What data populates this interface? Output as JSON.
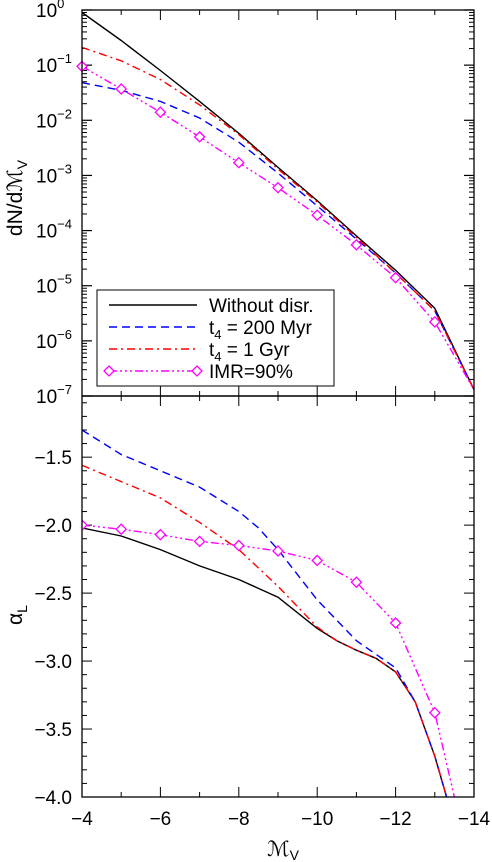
{
  "chart_data": [
    {
      "type": "line",
      "panel": "top",
      "xlabel": "",
      "ylabel_main": "dN/d",
      "ylabel_script": "ℳ",
      "ylabel_sub": "V",
      "yscale": "log",
      "xlim": [
        -4,
        -14
      ],
      "ylim": [
        1e-07,
        1
      ],
      "yticks": [
        {
          "mant": "10",
          "exp": "0",
          "value": 1
        },
        {
          "mant": "10",
          "exp": "−1",
          "value": 0.1
        },
        {
          "mant": "10",
          "exp": "−2",
          "value": 0.01
        },
        {
          "mant": "10",
          "exp": "−3",
          "value": 0.001
        },
        {
          "mant": "10",
          "exp": "−4",
          "value": 0.0001
        },
        {
          "mant": "10",
          "exp": "−5",
          "value": 1e-05
        },
        {
          "mant": "10",
          "exp": "−6",
          "value": 1e-06
        },
        {
          "mant": "10",
          "exp": "−7",
          "value": 1e-07
        }
      ],
      "legend": {
        "position": "lower-left",
        "entries": [
          {
            "main": "Without disr.",
            "sub": "",
            "rest": "",
            "color": "#000000",
            "dash": "none",
            "marker": false
          },
          {
            "main": "t",
            "sub": "4",
            "rest": " = 200 Myr",
            "color": "#0000ff",
            "dash": "8,5",
            "marker": false
          },
          {
            "main": "t",
            "sub": "4",
            "rest": " = 1 Gyr",
            "color": "#ff0000",
            "dash": "8,4,2,4",
            "marker": false
          },
          {
            "main": "IMR=90%",
            "sub": "",
            "rest": "",
            "color": "#ff00ff",
            "dash": "8,3,2,3,2,3,2,3",
            "marker": true
          }
        ]
      },
      "series": [
        {
          "key": "nodisr",
          "color": "#000000",
          "dash": "none",
          "marker": false,
          "x": [
            -4,
            -5,
            -6,
            -7,
            -8,
            -9,
            -10,
            -11,
            -12,
            -13,
            -14
          ],
          "y": [
            0.9,
            0.28,
            0.08,
            0.022,
            0.0058,
            0.0014,
            0.00035,
            8e-05,
            1.9e-05,
            3.9e-06,
            1.3e-07
          ]
        },
        {
          "key": "t200",
          "color": "#0000ff",
          "dash": "8,5",
          "marker": false,
          "x": [
            -4,
            -5,
            -6,
            -7,
            -8,
            -9,
            -10,
            -11,
            -12,
            -13,
            -14
          ],
          "y": [
            0.048,
            0.035,
            0.022,
            0.011,
            0.004,
            0.0011,
            0.00028,
            7e-05,
            1.7e-05,
            3.5e-06,
            1.3e-07
          ]
        },
        {
          "key": "t1g",
          "color": "#ff0000",
          "dash": "8,4,2,4",
          "marker": false,
          "x": [
            -4,
            -5,
            -6,
            -7,
            -8,
            -9,
            -10,
            -11,
            -12,
            -13,
            -14
          ],
          "y": [
            0.21,
            0.12,
            0.055,
            0.019,
            0.0055,
            0.0013,
            0.00033,
            7.5e-05,
            1.7e-05,
            3.5e-06,
            1.3e-07
          ]
        },
        {
          "key": "imr",
          "color": "#ff00ff",
          "dash": "8,3,2,3,2,3,2,3",
          "marker": true,
          "x": [
            -4,
            -5,
            -6,
            -7,
            -8,
            -9,
            -10,
            -11,
            -12,
            -13,
            -14
          ],
          "y": [
            0.095,
            0.037,
            0.014,
            0.005,
            0.0017,
            0.0006,
            0.00019,
            5.5e-05,
            1.4e-05,
            2.2e-06,
            1.3e-07
          ]
        }
      ]
    },
    {
      "type": "line",
      "panel": "bottom",
      "xlabel_script": "ℳ",
      "xlabel_sub": "V",
      "ylabel_main": "α",
      "ylabel_sub": "L",
      "xlim": [
        -4,
        -14
      ],
      "ylim": [
        -4.0,
        -1.05
      ],
      "xticks": [
        {
          "label": "−4",
          "value": -4
        },
        {
          "label": "−6",
          "value": -6
        },
        {
          "label": "−8",
          "value": -8
        },
        {
          "label": "−10",
          "value": -10
        },
        {
          "label": "−12",
          "value": -12
        },
        {
          "label": "−14",
          "value": -14
        }
      ],
      "yticks": [
        {
          "label": "−1.5",
          "value": -1.5
        },
        {
          "label": "−2.0",
          "value": -2.0
        },
        {
          "label": "−2.5",
          "value": -2.5
        },
        {
          "label": "−3.0",
          "value": -3.0
        },
        {
          "label": "−3.5",
          "value": -3.5
        },
        {
          "label": "−4.0",
          "value": -4.0
        }
      ],
      "series": [
        {
          "key": "nodisr",
          "color": "#000000",
          "dash": "none",
          "marker": false,
          "x": [
            -4,
            -5,
            -6,
            -7,
            -8,
            -9,
            -10,
            -10.5,
            -11,
            -11.5,
            -12,
            -12.5,
            -13,
            -13.3
          ],
          "y": [
            -2.02,
            -2.08,
            -2.18,
            -2.3,
            -2.4,
            -2.53,
            -2.76,
            -2.85,
            -2.92,
            -2.98,
            -3.08,
            -3.3,
            -3.7,
            -4.0
          ]
        },
        {
          "key": "t200",
          "color": "#0000ff",
          "dash": "8,5",
          "marker": false,
          "x": [
            -4,
            -5,
            -6,
            -7,
            -8,
            -8.5,
            -9,
            -10,
            -10.5,
            -11,
            -11.5,
            -12,
            -12.5,
            -13,
            -13.3
          ],
          "y": [
            -1.3,
            -1.48,
            -1.6,
            -1.72,
            -1.9,
            -2.02,
            -2.18,
            -2.55,
            -2.7,
            -2.85,
            -2.95,
            -3.05,
            -3.3,
            -3.7,
            -4.0
          ]
        },
        {
          "key": "t1g",
          "color": "#ff0000",
          "dash": "8,4,2,4",
          "marker": false,
          "x": [
            -4,
            -5,
            -6,
            -7,
            -8,
            -9,
            -10,
            -10.5,
            -11,
            -11.5,
            -12,
            -12.5,
            -13,
            -13.3
          ],
          "y": [
            -1.56,
            -1.68,
            -1.8,
            -1.98,
            -2.18,
            -2.45,
            -2.75,
            -2.85,
            -2.92,
            -2.98,
            -3.08,
            -3.3,
            -3.7,
            -4.0
          ]
        },
        {
          "key": "imr",
          "color": "#ff00ff",
          "dash": "8,3,2,3,2,3,2,3",
          "marker": true,
          "x": [
            -4,
            -5,
            -6,
            -7,
            -8,
            -9,
            -10,
            -11,
            -12,
            -13,
            -13.5
          ],
          "y": [
            -2.0,
            -2.03,
            -2.07,
            -2.12,
            -2.15,
            -2.19,
            -2.26,
            -2.42,
            -2.72,
            -3.38,
            -4.0
          ],
          "marker_count": 10
        }
      ]
    }
  ]
}
